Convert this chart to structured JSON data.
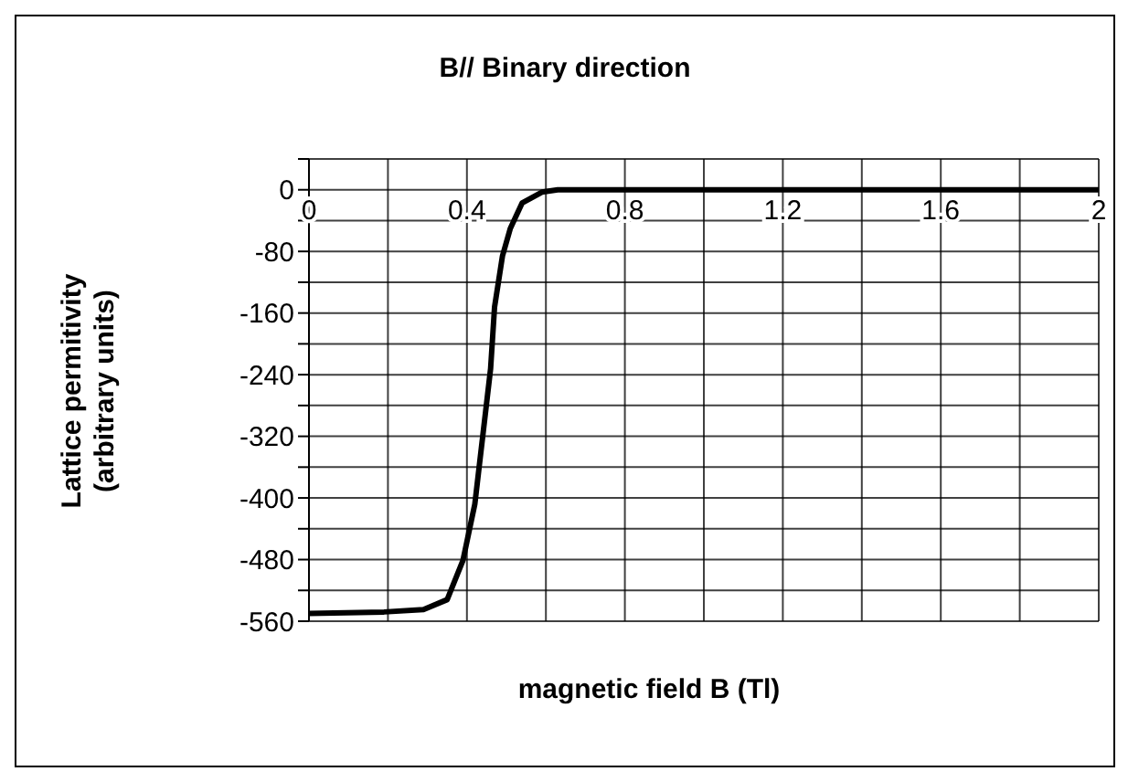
{
  "chart_data": {
    "type": "line",
    "title": "B// Binary direction",
    "xlabel": "magnetic field B (Tl)",
    "ylabel": "Lattice permitivity\n(arbitrary units)",
    "x": [
      0,
      0.19,
      0.29,
      0.35,
      0.39,
      0.42,
      0.44,
      0.46,
      0.47,
      0.49,
      0.51,
      0.54,
      0.59,
      0.63,
      0.8,
      1.2,
      1.6,
      2
    ],
    "series": [
      {
        "color": "#000000",
        "values": [
          -550,
          -548,
          -545,
          -532,
          -481,
          -408,
          -320,
          -232,
          -152,
          -86,
          -50,
          -17,
          -3,
          0,
          0,
          0,
          0,
          0
        ]
      }
    ],
    "xlim": [
      0,
      2
    ],
    "xticks": [
      0,
      {
        "value": 0.2,
        "label": null
      },
      0.4,
      {
        "value": 0.6,
        "label": null
      },
      0.8,
      {
        "value": 1,
        "label": null
      },
      1.2,
      {
        "value": 1.4,
        "label": null
      },
      1.6,
      {
        "value": 1.8,
        "label": null
      },
      2
    ],
    "ylim": [
      -560,
      40
    ],
    "yticks": [
      {
        "value": 40,
        "label": null
      },
      0,
      {
        "value": -40,
        "label": null
      },
      -80,
      {
        "value": -120,
        "label": null
      },
      -160,
      {
        "value": -200,
        "label": null
      },
      -240,
      {
        "value": -280,
        "label": null
      },
      -320,
      {
        "value": -360,
        "label": null
      },
      -400,
      {
        "value": -440,
        "label": null
      },
      -480,
      {
        "value": -520,
        "label": null
      },
      -560
    ],
    "grid": true,
    "marker": "none",
    "line_style": "solid",
    "legend": false
  }
}
